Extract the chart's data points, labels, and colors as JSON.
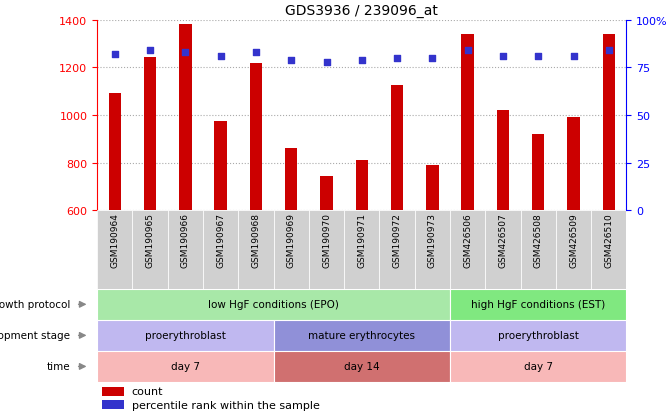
{
  "title": "GDS3936 / 239096_at",
  "samples": [
    "GSM190964",
    "GSM190965",
    "GSM190966",
    "GSM190967",
    "GSM190968",
    "GSM190969",
    "GSM190970",
    "GSM190971",
    "GSM190972",
    "GSM190973",
    "GSM426506",
    "GSM426507",
    "GSM426508",
    "GSM426509",
    "GSM426510"
  ],
  "counts": [
    1090,
    1245,
    1380,
    975,
    1220,
    860,
    745,
    810,
    1125,
    790,
    1340,
    1020,
    920,
    990,
    1340
  ],
  "percentiles": [
    82,
    84,
    83,
    81,
    83,
    79,
    78,
    79,
    80,
    80,
    84,
    81,
    81,
    81,
    84
  ],
  "ymin": 600,
  "ymax": 1400,
  "yright_min": 0,
  "yright_max": 100,
  "bar_color": "#cc0000",
  "dot_color": "#3333cc",
  "grid_color": "#aaaaaa",
  "xtick_bg": "#d0d0d0",
  "growth_protocol_row": {
    "label": "growth protocol",
    "segments": [
      {
        "text": "low HgF conditions (EPO)",
        "start": 0,
        "end": 10,
        "color": "#a8e8a8"
      },
      {
        "text": "high HgF conditions (EST)",
        "start": 10,
        "end": 15,
        "color": "#80e880"
      }
    ]
  },
  "development_stage_row": {
    "label": "development stage",
    "segments": [
      {
        "text": "proerythroblast",
        "start": 0,
        "end": 5,
        "color": "#c0b8f0"
      },
      {
        "text": "mature erythrocytes",
        "start": 5,
        "end": 10,
        "color": "#9090d8"
      },
      {
        "text": "proerythroblast",
        "start": 10,
        "end": 15,
        "color": "#c0b8f0"
      }
    ]
  },
  "time_row": {
    "label": "time",
    "segments": [
      {
        "text": "day 7",
        "start": 0,
        "end": 5,
        "color": "#f8b8b8"
      },
      {
        "text": "day 14",
        "start": 5,
        "end": 10,
        "color": "#d07070"
      },
      {
        "text": "day 7",
        "start": 10,
        "end": 15,
        "color": "#f8b8b8"
      }
    ]
  },
  "legend_count_color": "#cc0000",
  "legend_dot_color": "#3333cc"
}
